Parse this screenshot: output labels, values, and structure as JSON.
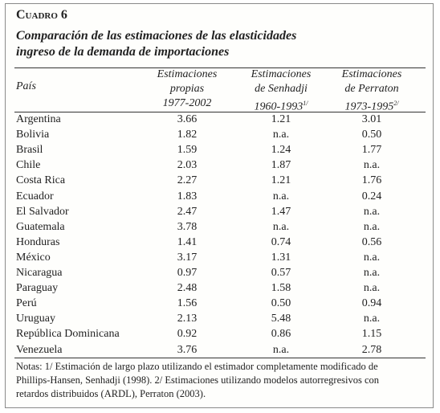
{
  "title": "Cuadro 6",
  "subtitle": [
    "Comparación de las estimaciones de las elasticidades",
    "ingreso de la demanda de importaciones"
  ],
  "table": {
    "columns": [
      {
        "lines": [
          "País"
        ]
      },
      {
        "lines": [
          "Estimaciones",
          "propias",
          "1977-2002"
        ]
      },
      {
        "lines": [
          "Estimaciones",
          "de Senhadji",
          "1960-1993"
        ],
        "sup": "1/"
      },
      {
        "lines": [
          "Estimaciones",
          "de Perraton",
          "1973-1995"
        ],
        "sup": "2/"
      }
    ],
    "rows": [
      [
        "Argentina",
        "3.66",
        "1.21",
        "3.01"
      ],
      [
        "Bolivia",
        "1.82",
        "n.a.",
        "0.50"
      ],
      [
        "Brasil",
        "1.59",
        "1.24",
        "1.77"
      ],
      [
        "Chile",
        "2.03",
        "1.87",
        "n.a."
      ],
      [
        "Costa Rica",
        "2.27",
        "1.21",
        "1.76"
      ],
      [
        "Ecuador",
        "1.83",
        "n.a.",
        "0.24"
      ],
      [
        "El Salvador",
        "2.47",
        "1.47",
        "n.a."
      ],
      [
        "Guatemala",
        "3.78",
        "n.a.",
        "n.a."
      ],
      [
        "Honduras",
        "1.41",
        "0.74",
        "0.56"
      ],
      [
        "México",
        "3.17",
        "1.31",
        "n.a."
      ],
      [
        "Nicaragua",
        "0.97",
        "0.57",
        "n.a."
      ],
      [
        "Paraguay",
        "2.48",
        "1.58",
        "n.a."
      ],
      [
        "Perú",
        "1.56",
        "0.50",
        "0.94"
      ],
      [
        "Uruguay",
        "2.13",
        "5.48",
        "n.a."
      ],
      [
        "República Dominicana",
        "0.92",
        "0.86",
        "1.15"
      ],
      [
        "Venezuela",
        "3.76",
        "n.a.",
        "2.78"
      ]
    ]
  },
  "notes": [
    "Notas: 1/ Estimación de largo plazo utilizando el estimador completamente modificado de",
    "Phillips-Hansen, Senhadji (1998). 2/ Estimaciones utilizando modelos autorregresivos con",
    "retardos distribuidos (ARDL), Perraton (2003)."
  ]
}
